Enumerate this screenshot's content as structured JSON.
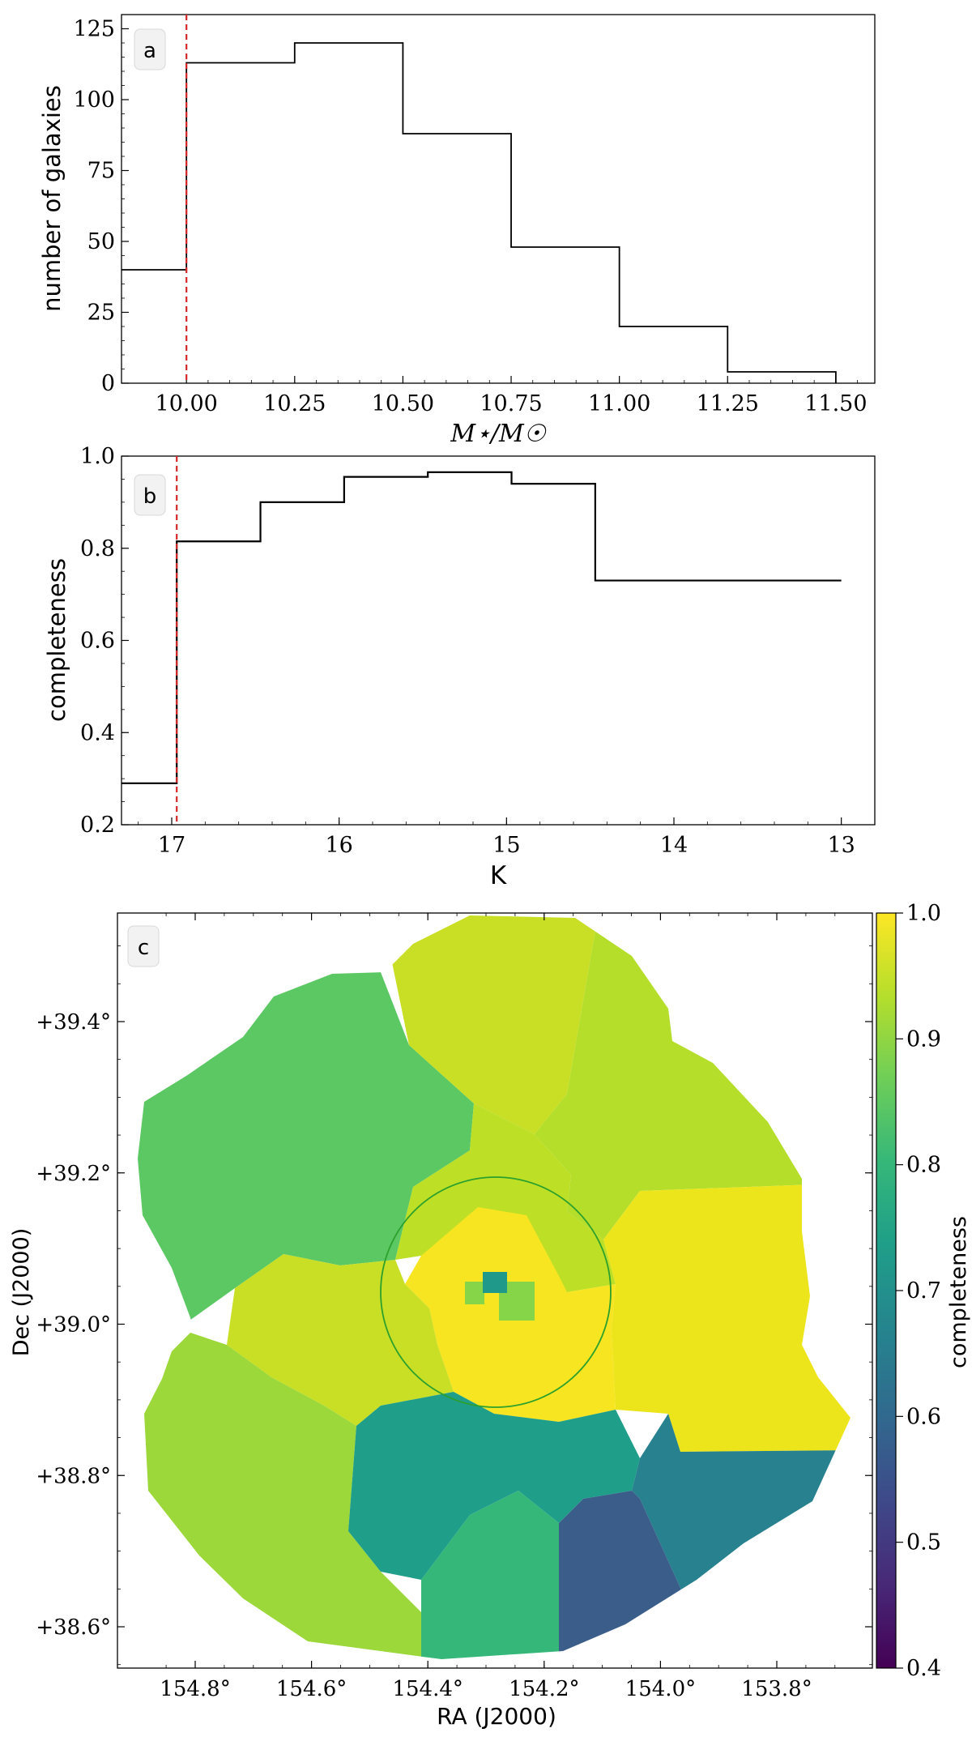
{
  "chart_data": [
    {
      "panel": "a",
      "type": "histogram",
      "xlabel": "M⋆/M☉",
      "ylabel": "number of galaxies",
      "xlim": [
        9.85,
        11.59
      ],
      "ylim": [
        0,
        130
      ],
      "xticks": [
        10.0,
        10.25,
        10.5,
        10.75,
        11.0,
        11.25,
        11.5
      ],
      "xtick_labels": [
        "10.00",
        "10.25",
        "10.50",
        "10.75",
        "11.00",
        "11.25",
        "11.50"
      ],
      "yticks": [
        0,
        25,
        50,
        75,
        100,
        125
      ],
      "ytick_labels": [
        "0",
        "25",
        "50",
        "75",
        "100",
        "125"
      ],
      "bin_edges": [
        9.85,
        10.0,
        10.25,
        10.5,
        10.75,
        11.0,
        11.25,
        11.5
      ],
      "values": [
        40,
        113,
        120,
        88,
        48,
        20,
        4
      ],
      "threshold": 10.0,
      "threshold_color": "#d62728"
    },
    {
      "panel": "b",
      "type": "line",
      "xlabel": "K",
      "ylabel": "completeness",
      "xlim": [
        17.3,
        12.8
      ],
      "ylim": [
        0.2,
        1.0
      ],
      "xticks": [
        17,
        16,
        15,
        14,
        13
      ],
      "xtick_labels": [
        "17",
        "16",
        "15",
        "14",
        "13"
      ],
      "yticks": [
        0.2,
        0.4,
        0.6,
        0.8,
        1.0
      ],
      "ytick_labels": [
        "0.2",
        "0.4",
        "0.6",
        "0.8",
        "1.0"
      ],
      "bin_edges": [
        17.3,
        16.97,
        16.47,
        15.97,
        15.47,
        14.97,
        14.47,
        13.0
      ],
      "values": [
        0.29,
        0.815,
        0.9,
        0.955,
        0.965,
        0.94,
        0.73
      ],
      "threshold": 16.97,
      "threshold_color": "#d62728"
    },
    {
      "panel": "c",
      "type": "heatmap",
      "xlabel": "RA (J2000)",
      "ylabel": "Dec (J2000)",
      "xticks": [
        154.8,
        154.6,
        154.4,
        154.2,
        154.0,
        153.8
      ],
      "xtick_labels": [
        "154.8°",
        "154.6°",
        "154.4°",
        "154.2°",
        "154.0°",
        "153.8°"
      ],
      "yticks": [
        38.6,
        38.8,
        39.0,
        39.2,
        39.4
      ],
      "ytick_labels": [
        "+38.6°",
        "+38.8°",
        "+39.0°",
        "+39.2°",
        "+39.4°"
      ],
      "colorbar": {
        "label": "completeness",
        "range": [
          0.4,
          1.0
        ],
        "ticks": [
          0.4,
          0.5,
          0.6,
          0.7,
          0.8,
          0.9,
          1.0
        ],
        "tick_labels": [
          "0.4",
          "0.5",
          "0.6",
          "0.7",
          "0.8",
          "0.9",
          "1.0"
        ],
        "colormap": "viridis"
      },
      "region_colors": {
        "upper_left": "#5cc863",
        "top": "#c8df25",
        "upper_right": "#b5de2b",
        "center_north": "#bddf26",
        "center": "#f6e520",
        "right": "#ece51b",
        "left_mid": "#c8df25",
        "left_lower": "#9cd83a",
        "bottom_teal": "#1f9e89",
        "bottom_mid_green": "#35b779",
        "bottom_blue": "#3b5d8a",
        "bottom_right_teal": "#28818e",
        "center_teal_pixel": "#1f9a8a",
        "center_green_pixel": "#86d549"
      },
      "circle_color": "#2ca02c"
    }
  ],
  "panel_labels": [
    "a",
    "b",
    "c"
  ]
}
